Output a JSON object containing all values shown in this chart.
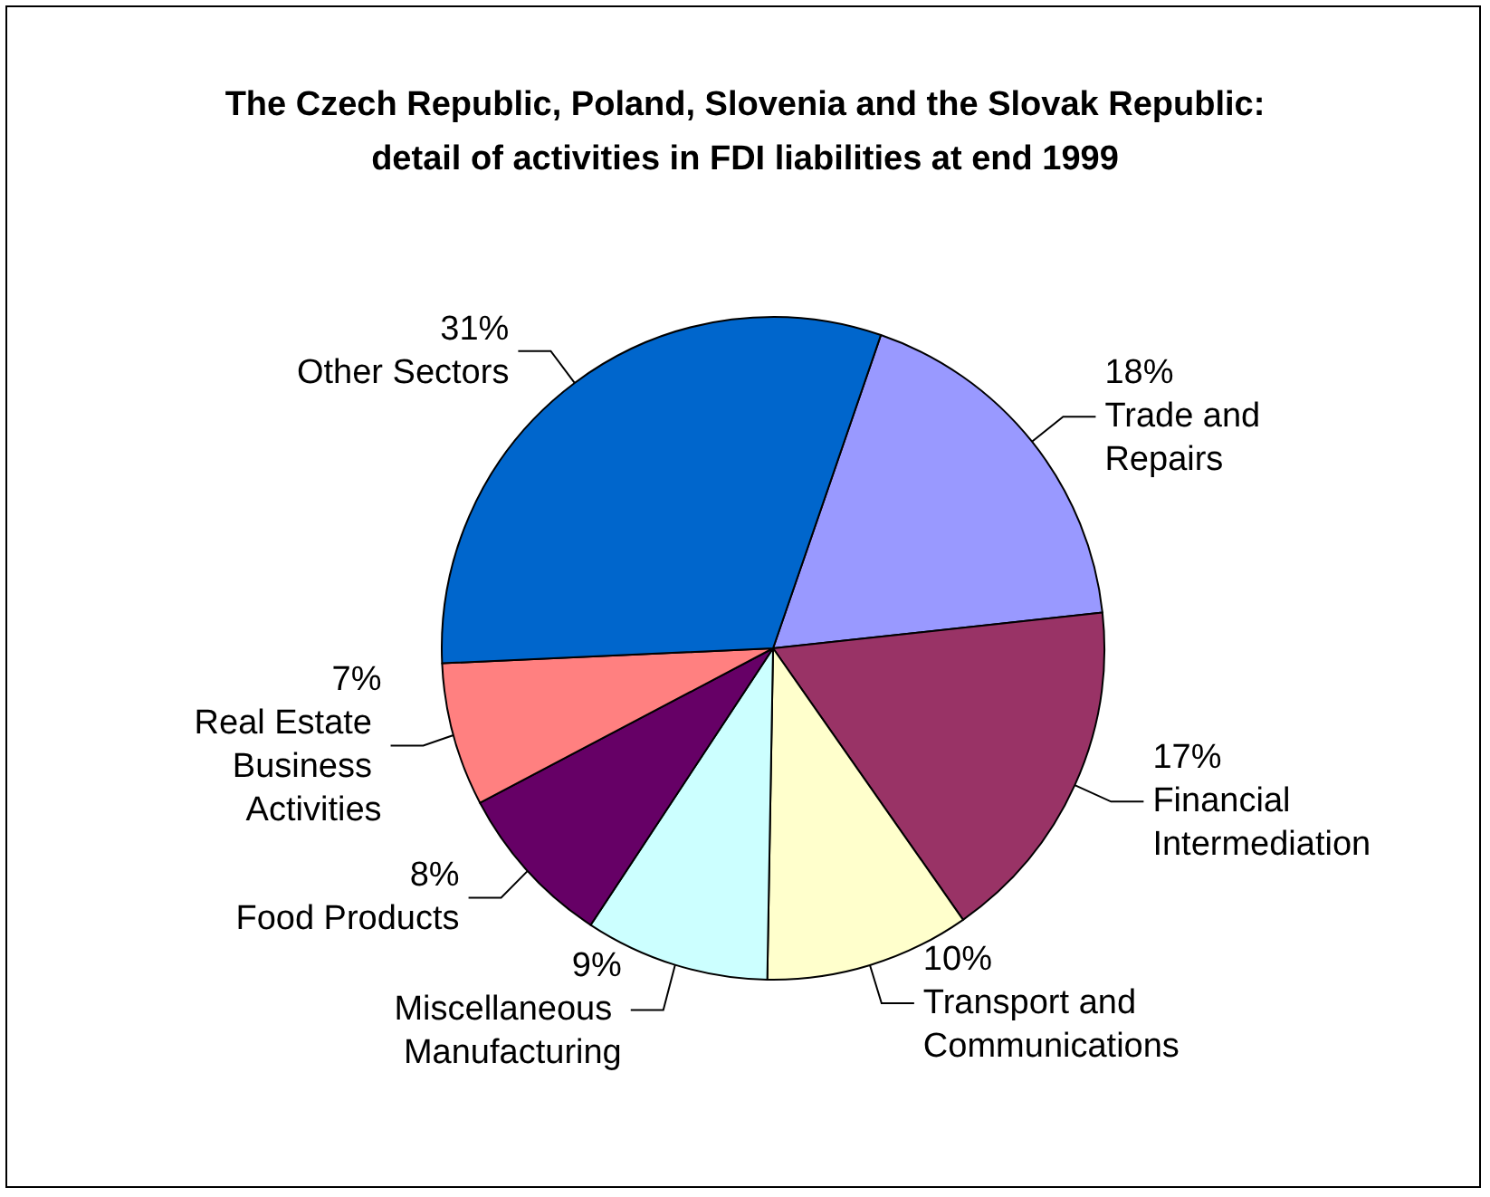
{
  "chart_data": {
    "type": "pie",
    "title": "The Czech Republic, Poland, Slovenia and the Slovak Republic:\ndetail of activities in FDI liabilities at end 1999",
    "categories": [
      "Trade and Repairs",
      "Financial Intermediation",
      "Transport and Communications",
      "Miscellaneous Manufacturing",
      "Food Products",
      "Real Estate Business Activities",
      "Other Sectors"
    ],
    "values": [
      18,
      17,
      10,
      9,
      8,
      7,
      31
    ],
    "colors": [
      "#9999ff",
      "#993366",
      "#ffffcc",
      "#ccffff",
      "#660066",
      "#ff8080",
      "#0066cc"
    ],
    "value_labels": [
      "18%",
      "17%",
      "10%",
      "9%",
      "8%",
      "7%",
      "31%"
    ],
    "legend": false
  }
}
